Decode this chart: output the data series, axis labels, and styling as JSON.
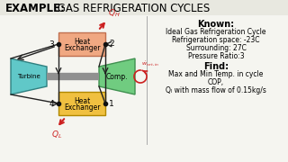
{
  "title_bold": "EXAMPLE:",
  "title_normal": " GAS REFRIGERATION CYCLES",
  "bg_color": "#f5f5f0",
  "known_title": "Known:",
  "known_lines": [
    "Ideal Gas Refrigeration Cycle",
    "Refrigeration space: -23C",
    "Surrounding: 27C",
    "Pressure Ratio:3"
  ],
  "find_title": "Find:",
  "find_lines": [
    "Max and Min Temp. in cycle",
    "COP,",
    "Qₗ with mass flow of 0.15kg/s"
  ],
  "heat_exchanger_top_color": "#f0a882",
  "heat_exchanger_top_edge": "#c07050",
  "heat_exchanger_bottom_color": "#f0c040",
  "heat_exchanger_bottom_edge": "#b08800",
  "turbine_color": "#60c8c8",
  "turbine_edge": "#308080",
  "comp_color": "#70cc80",
  "comp_edge": "#409050",
  "shaft_color": "#909090",
  "arrow_color": "#cc2020",
  "line_color": "#222222",
  "node_color": "#111111",
  "divider_color": "#aaaaaa",
  "title_bg": "#e8e8e0"
}
